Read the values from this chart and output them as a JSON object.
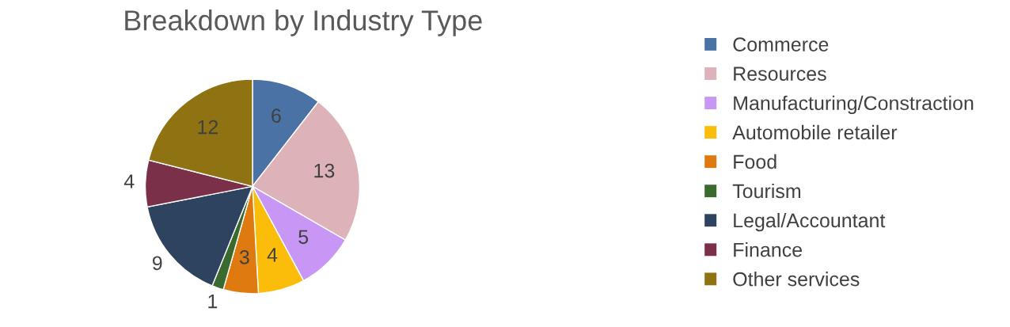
{
  "chart_data": {
    "type": "pie",
    "title": "Breakdown by Industry Type",
    "categories": [
      "Commerce",
      "Resources",
      "Manufacturing/Constraction",
      "Automobile retailer",
      "Food",
      "Tourism",
      "Legal/Accountant",
      "Finance",
      "Other services"
    ],
    "values": [
      6,
      13,
      5,
      4,
      3,
      1,
      9,
      4,
      12
    ],
    "colors": [
      "#4a72a4",
      "#ddb2b8",
      "#c896f5",
      "#fbbd0a",
      "#df7a10",
      "#3b6a2e",
      "#2e4360",
      "#7a3048",
      "#8f7212"
    ],
    "data_labels": true,
    "legend": "right"
  }
}
